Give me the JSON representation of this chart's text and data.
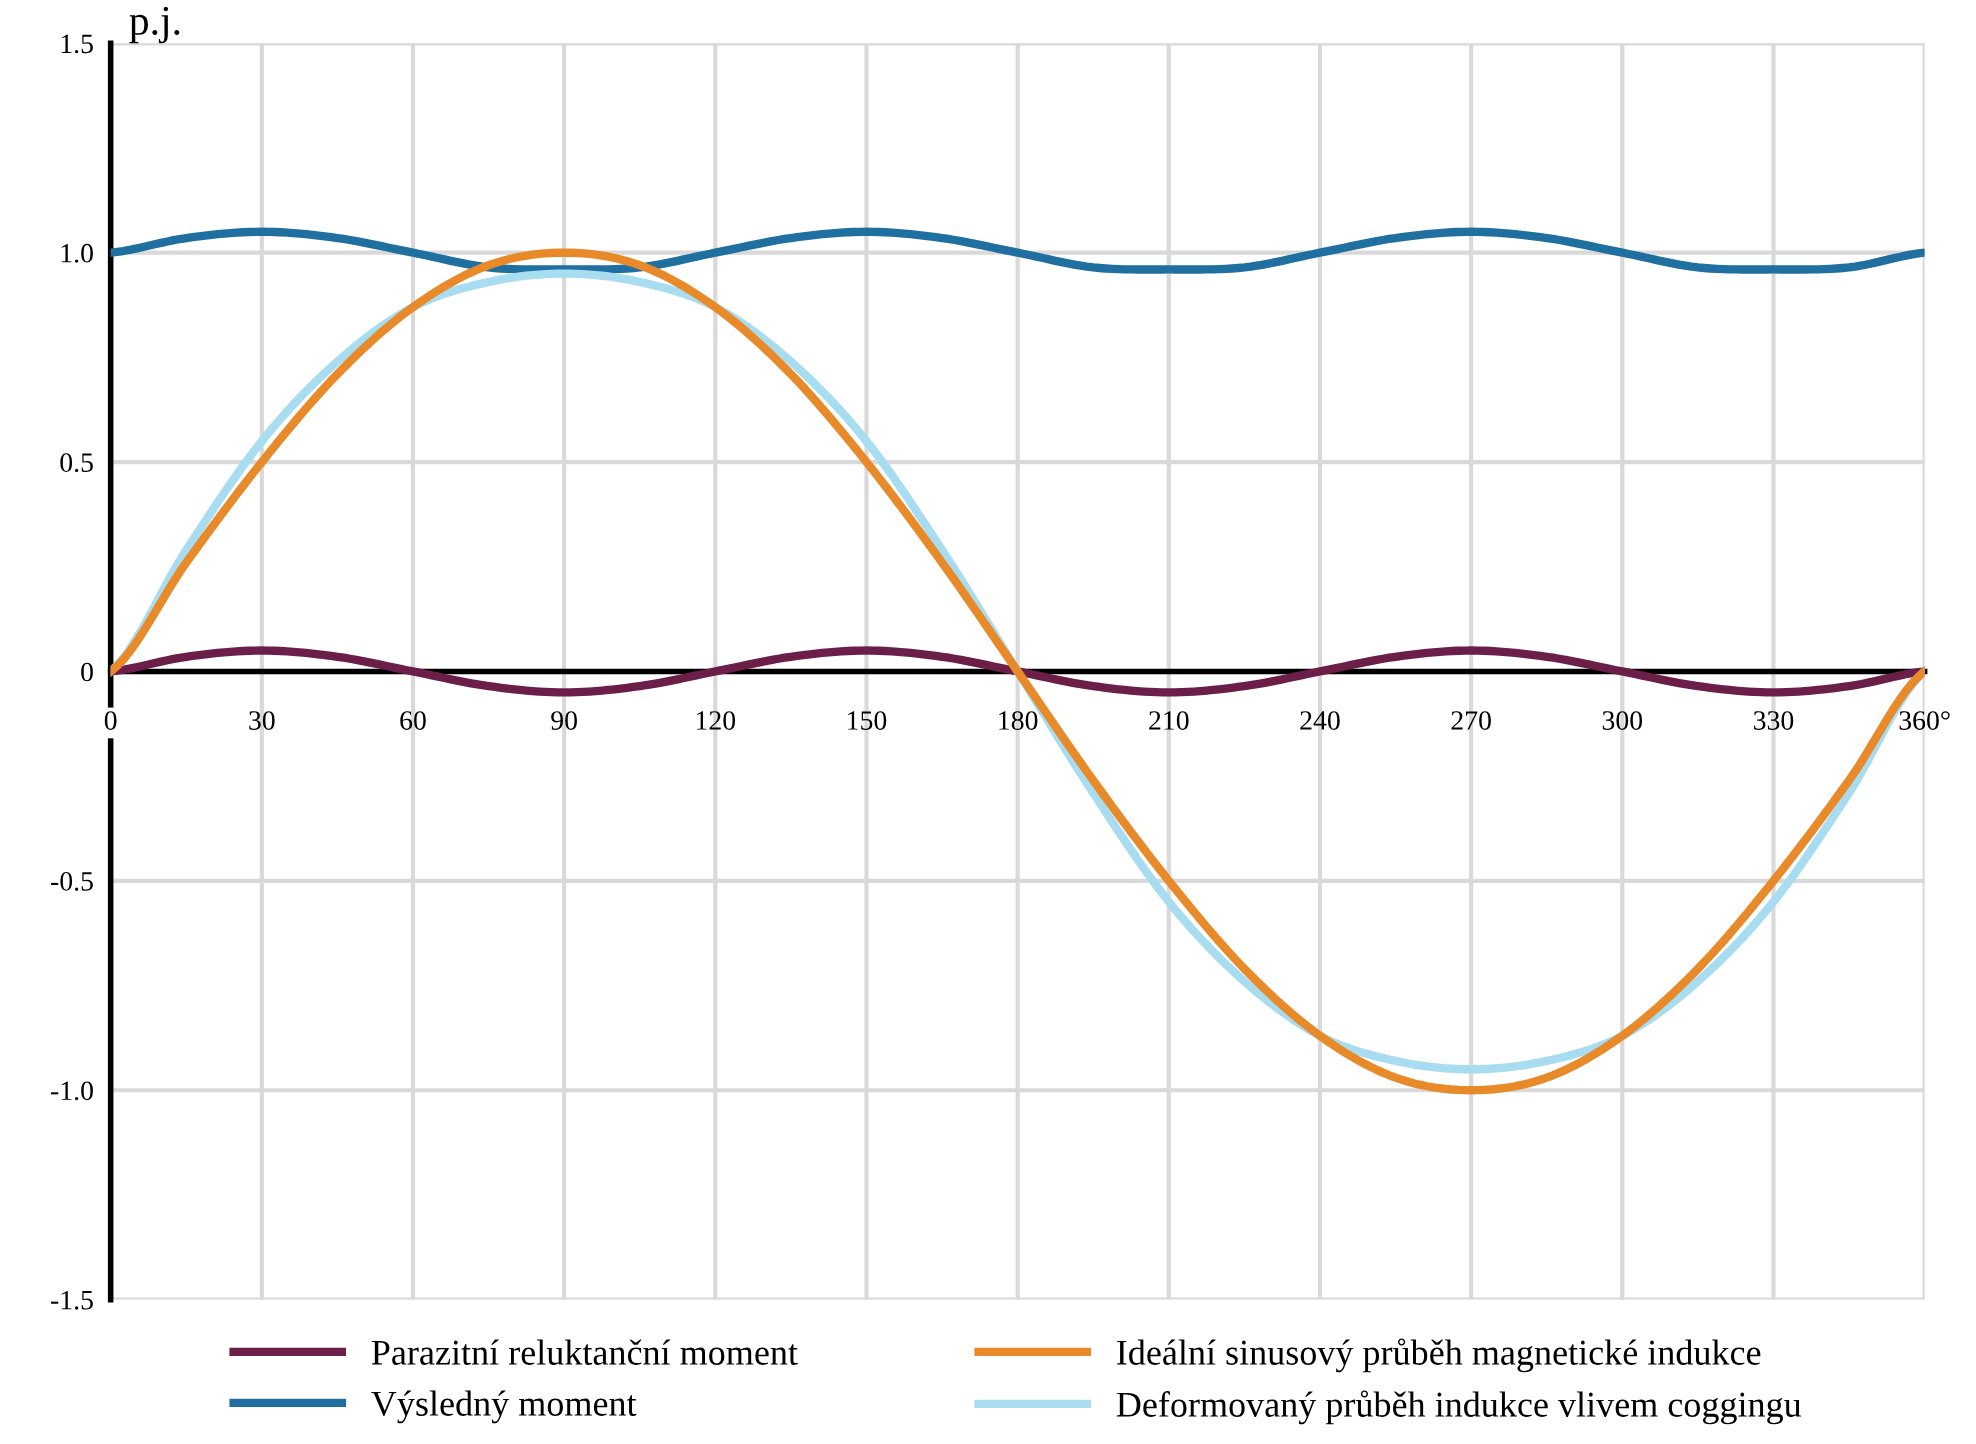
{
  "chart_data": {
    "type": "line",
    "ylabel": "p.j.",
    "x": [
      0,
      15,
      30,
      45,
      60,
      75,
      90,
      105,
      120,
      135,
      150,
      165,
      180,
      195,
      210,
      225,
      240,
      255,
      270,
      285,
      300,
      315,
      330,
      345,
      360
    ],
    "series": [
      {
        "name": "Parazitní reluktanční moment",
        "color": "#6b1e48",
        "values": [
          0,
          0.035,
          0.05,
          0.035,
          0,
          -0.035,
          -0.05,
          -0.035,
          0,
          0.035,
          0.05,
          0.035,
          0,
          -0.035,
          -0.05,
          -0.035,
          0,
          0.035,
          0.05,
          0.035,
          0,
          -0.035,
          -0.05,
          -0.035,
          0
        ]
      },
      {
        "name": "Výsledný moment",
        "color": "#1f6fa0",
        "values": [
          1,
          1.035,
          1.05,
          1.035,
          1,
          0.965,
          0.96,
          0.965,
          1,
          1.035,
          1.05,
          1.035,
          1,
          0.965,
          0.96,
          0.965,
          1,
          1.035,
          1.05,
          1.035,
          1,
          0.965,
          0.96,
          0.965,
          1
        ]
      },
      {
        "name": "Ideální sinusový průběh magnetické indukce",
        "color": "#e8892a",
        "values": [
          0,
          0.26,
          0.5,
          0.71,
          0.87,
          0.97,
          1,
          0.97,
          0.87,
          0.71,
          0.5,
          0.26,
          0,
          -0.26,
          -0.5,
          -0.71,
          -0.87,
          -0.97,
          -1,
          -0.97,
          -0.87,
          -0.71,
          -0.5,
          -0.26,
          0
        ]
      },
      {
        "name": "Deformovaný průběh indukce vlivem coggingu",
        "color": "#a8dcf0",
        "values": [
          0,
          0.29,
          0.55,
          0.74,
          0.87,
          0.93,
          0.95,
          0.93,
          0.87,
          0.74,
          0.55,
          0.29,
          0,
          -0.29,
          -0.55,
          -0.74,
          -0.87,
          -0.93,
          -0.95,
          -0.93,
          -0.87,
          -0.74,
          -0.55,
          -0.29,
          0
        ]
      }
    ],
    "xlim": [
      0,
      360
    ],
    "ylim": [
      -1.5,
      1.5
    ],
    "xticks": [
      0,
      30,
      60,
      90,
      120,
      150,
      180,
      210,
      240,
      270,
      300,
      330,
      {
        "value": 360,
        "label": "360°"
      }
    ],
    "yticks": [
      -1.5,
      {
        "value": -1.0,
        "label": "-1.0"
      },
      -0.5,
      0,
      0.5,
      {
        "value": 1.0,
        "label": "1.0"
      },
      1.5
    ],
    "grid": true,
    "legend": "bottom",
    "line_style": "solid",
    "marker": "none"
  }
}
